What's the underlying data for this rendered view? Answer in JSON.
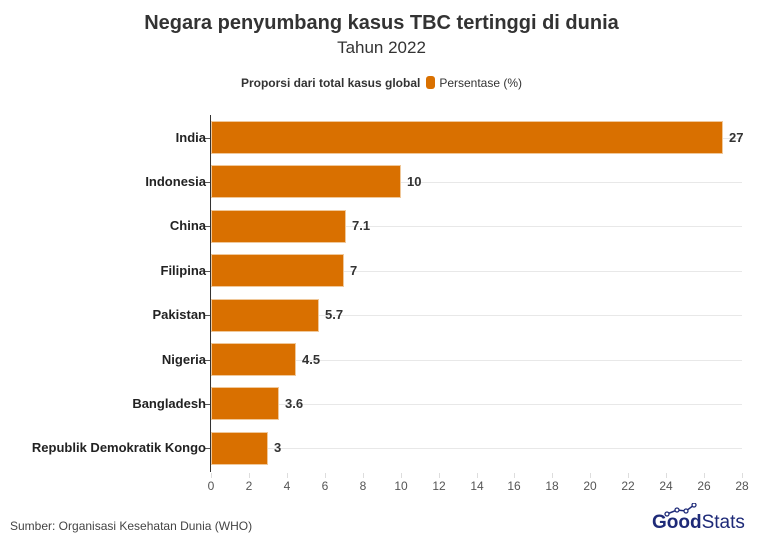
{
  "header": {
    "title": "Negara penyumbang kasus TBC tertinggi di dunia",
    "subtitle": "Tahun 2022"
  },
  "legend": {
    "title": "Proporsi dari total kasus global",
    "series_label": "Persentase (%)",
    "color": "#d97000"
  },
  "footer": {
    "source": "Sumber: Organisasi Kesehatan Dunia (WHO)",
    "logo_bold": "Good",
    "logo_light": "Stats",
    "logo_color": "#1e2a78"
  },
  "chart_data": {
    "type": "bar",
    "orientation": "horizontal",
    "title": "Negara penyumbang kasus TBC tertinggi di dunia",
    "subtitle": "Tahun 2022",
    "categories": [
      "India",
      "Indonesia",
      "China",
      "Filipina",
      "Pakistan",
      "Nigeria",
      "Bangladesh",
      "Republik Demokratik Kongo"
    ],
    "series": [
      {
        "name": "Persentase (%)",
        "values": [
          27,
          10,
          7.1,
          7,
          5.7,
          4.5,
          3.6,
          3
        ],
        "color": "#d97000"
      }
    ],
    "value_labels": [
      "27",
      "10",
      "7.1",
      "7",
      "5.7",
      "4.5",
      "3.6",
      "3"
    ],
    "xlabel": "",
    "ylabel": "",
    "legend_title": "Proporsi dari total kasus global",
    "xlim": [
      0,
      28
    ],
    "xticks": [
      "0",
      "2",
      "4",
      "6",
      "8",
      "10",
      "12",
      "14",
      "16",
      "18",
      "20",
      "22",
      "24",
      "26",
      "28"
    ],
    "grid": true,
    "legend_position": "top"
  }
}
